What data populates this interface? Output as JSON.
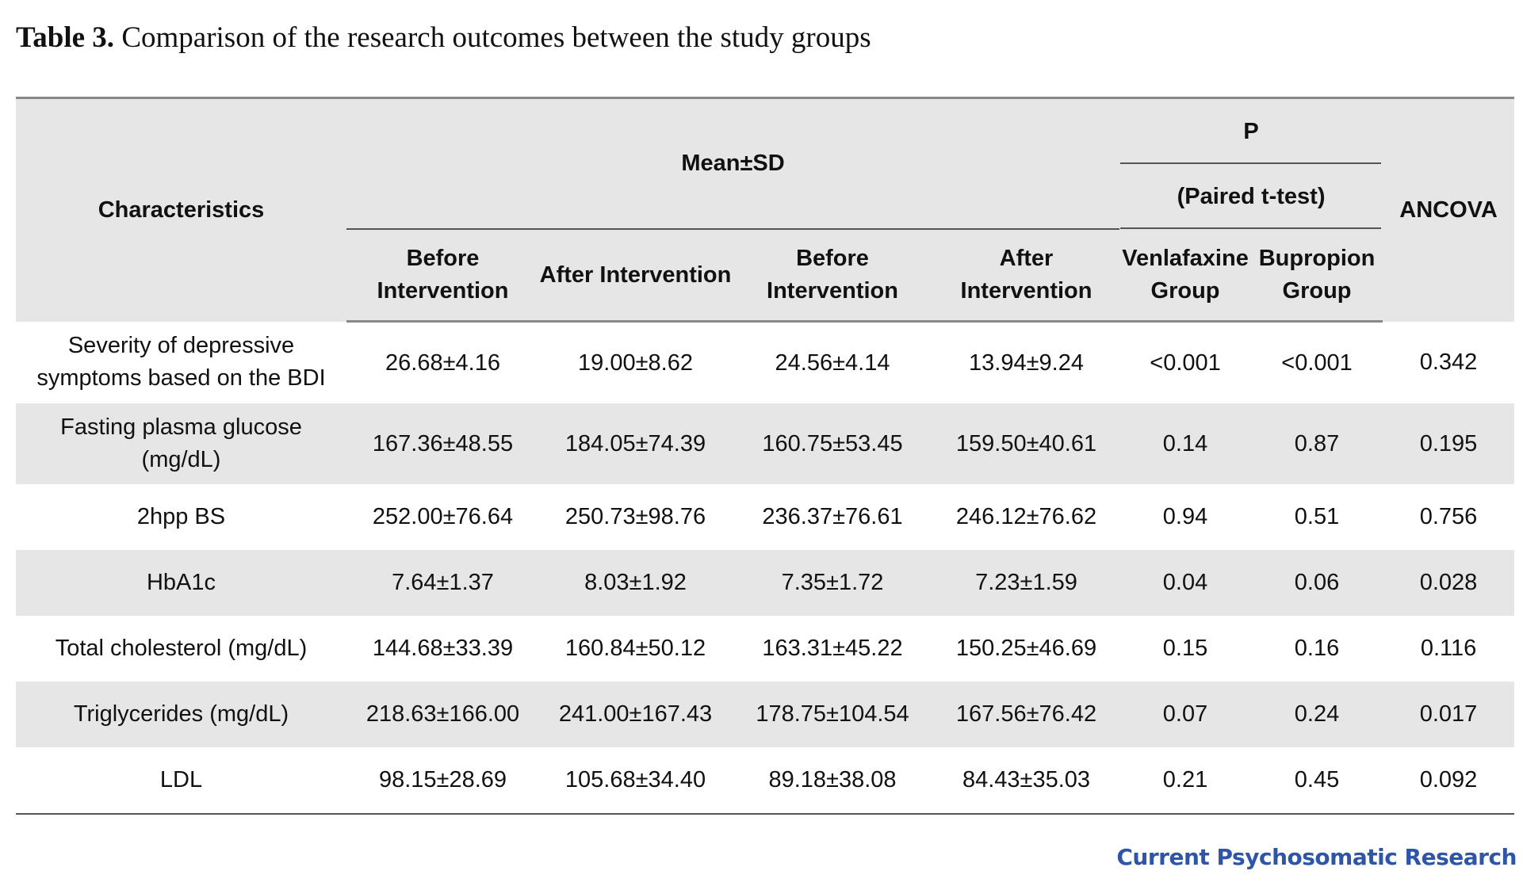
{
  "caption": {
    "lead": "Table 3.",
    "text": " Comparison of the research outcomes between the study groups"
  },
  "table": {
    "headers": {
      "characteristics": "Characteristics",
      "mean_sd": "Mean±SD",
      "p": "P",
      "paired_t": "(Paired t-test)",
      "ancova": "ANCOVA",
      "before_1": "Before Intervention",
      "after_1": "After Intervention",
      "before_2": "Before Intervention",
      "after_2": "After Intervention",
      "venlafaxine": "Venlafaxine Group",
      "bupropion": "Bupropion Group"
    },
    "rows": [
      {
        "label": "Severity of depressive symptoms based on the BDI",
        "before_1": "26.68±4.16",
        "after_1": "19.00±8.62",
        "before_2": "24.56±4.14",
        "after_2": "13.94±9.24",
        "p_venlafaxine": "<0.001",
        "p_bupropion": "<0.001",
        "ancova": "0.342"
      },
      {
        "label": "Fasting plasma glucose (mg/dL)",
        "before_1": "167.36±48.55",
        "after_1": "184.05±74.39",
        "before_2": "160.75±53.45",
        "after_2": "159.50±40.61",
        "p_venlafaxine": "0.14",
        "p_bupropion": "0.87",
        "ancova": "0.195"
      },
      {
        "label": "2hpp BS",
        "before_1": "252.00±76.64",
        "after_1": "250.73±98.76",
        "before_2": "236.37±76.61",
        "after_2": "246.12±76.62",
        "p_venlafaxine": "0.94",
        "p_bupropion": "0.51",
        "ancova": "0.756"
      },
      {
        "label": "HbA1c",
        "before_1": "7.64±1.37",
        "after_1": "8.03±1.92",
        "before_2": "7.35±1.72",
        "after_2": "7.23±1.59",
        "p_venlafaxine": "0.04",
        "p_bupropion": "0.06",
        "ancova": "0.028"
      },
      {
        "label": "Total cholesterol (mg/dL)",
        "before_1": "144.68±33.39",
        "after_1": "160.84±50.12",
        "before_2": "163.31±45.22",
        "after_2": "150.25±46.69",
        "p_venlafaxine": "0.15",
        "p_bupropion": "0.16",
        "ancova": "0.116"
      },
      {
        "label": "Triglycerides (mg/dL)",
        "before_1": "218.63±166.00",
        "after_1": "241.00±167.43",
        "before_2": "178.75±104.54",
        "after_2": "167.56±76.42",
        "p_venlafaxine": "0.07",
        "p_bupropion": "0.24",
        "ancova": "0.017"
      },
      {
        "label": "LDL",
        "before_1": "98.15±28.69",
        "after_1": "105.68±34.40",
        "before_2": "89.18±38.08",
        "after_2": "84.43±35.03",
        "p_venlafaxine": "0.21",
        "p_bupropion": "0.45",
        "ancova": "0.092"
      }
    ]
  },
  "journal": {
    "name": "Current Psychosomatic Research",
    "color": "#2f56a6"
  }
}
